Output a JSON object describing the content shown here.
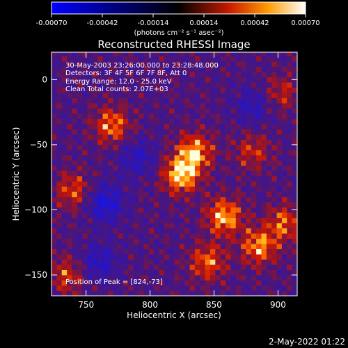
{
  "colorbar": {
    "tick_labels": [
      "-0.00070",
      "-0.00042",
      "-0.00014",
      "0.00014",
      "0.00042",
      "0.00070"
    ],
    "units": "(photons cm⁻² s⁻¹ asec⁻²)",
    "range": [
      -0.0007,
      0.0007
    ]
  },
  "chart_data": {
    "type": "heatmap",
    "title": "Reconstructed RHESSI Image",
    "xlabel": "Heliocentric X (arcsec)",
    "ylabel": "Heliocentric Y (arcsec)",
    "xlim": [
      723,
      915
    ],
    "ylim": [
      -166,
      21
    ],
    "x_ticks": [
      750,
      800,
      850,
      900
    ],
    "y_ticks": [
      0,
      -50,
      -100,
      -150
    ],
    "annotations": [
      "30-May-2003 23:26:00.000 to 23:28:48.000",
      "Detectors: 3F 4F 5F 6F 7F 8F, Att 0",
      "Energy Range: 12.0 - 25.0 keV",
      "Clean    Total counts: 2.07E+03"
    ],
    "peak_label": "Position of Peak = [824,-73]",
    "peak": [
      824,
      -73
    ],
    "bright_regions": [
      {
        "x": 770,
        "y": -35,
        "level": 0.75
      },
      {
        "x": 824,
        "y": -73,
        "level": 1.0
      },
      {
        "x": 835,
        "y": -55,
        "level": 0.85
      },
      {
        "x": 858,
        "y": -105,
        "level": 0.9
      },
      {
        "x": 885,
        "y": -128,
        "level": 0.8
      },
      {
        "x": 905,
        "y": -110,
        "level": 0.65
      },
      {
        "x": 845,
        "y": -140,
        "level": 0.7
      },
      {
        "x": 740,
        "y": -85,
        "level": 0.6
      },
      {
        "x": 735,
        "y": -150,
        "level": 0.55
      },
      {
        "x": 880,
        "y": -55,
        "level": 0.5
      },
      {
        "x": 903,
        "y": -10,
        "level": 0.45
      }
    ],
    "dim_regions": [
      {
        "x": 765,
        "y": -95,
        "level": -0.75
      },
      {
        "x": 790,
        "y": -60,
        "level": -0.5
      },
      {
        "x": 760,
        "y": -140,
        "level": -0.55
      },
      {
        "x": 880,
        "y": -20,
        "level": -0.45
      }
    ]
  },
  "timestamp": "2-May-2022 01:22"
}
